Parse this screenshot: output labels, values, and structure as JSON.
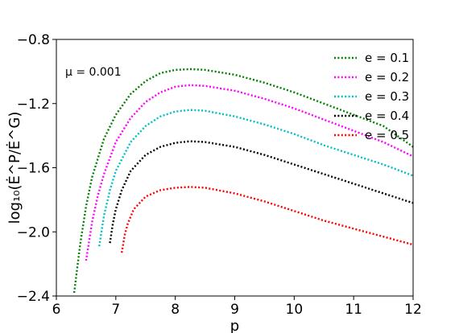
{
  "chart_data": {
    "type": "line",
    "xlabel": "p",
    "ylabel": "log₁₀(Ė^P/Ė^G)",
    "xlim": [
      6,
      12
    ],
    "ylim": [
      -2.4,
      -0.8
    ],
    "xticks": [
      "6",
      "7",
      "8",
      "9",
      "10",
      "11",
      "12"
    ],
    "yticks": [
      "−0.8",
      "−1.2",
      "−1.6",
      "−2.0",
      "−2.4"
    ],
    "annotation": "μ = 0.001",
    "grid": false,
    "legend_position": "top-right",
    "series": [
      {
        "name": "e = 0.1",
        "color": "#008000",
        "x": [
          6.3,
          6.4,
          6.5,
          6.6,
          6.8,
          7.0,
          7.25,
          7.5,
          7.75,
          8.0,
          8.25,
          8.5,
          9.0,
          9.5,
          10.0,
          10.5,
          11.0,
          11.5,
          12.0
        ],
        "y": [
          -2.38,
          -2.08,
          -1.84,
          -1.66,
          -1.42,
          -1.27,
          -1.14,
          -1.06,
          -1.01,
          -0.99,
          -0.985,
          -0.99,
          -1.02,
          -1.07,
          -1.13,
          -1.2,
          -1.27,
          -1.34,
          -1.47
        ]
      },
      {
        "name": "e = 0.2",
        "color": "#ff00ff",
        "x": [
          6.5,
          6.6,
          6.7,
          6.8,
          7.0,
          7.25,
          7.5,
          7.75,
          8.0,
          8.25,
          8.5,
          9.0,
          9.5,
          10.0,
          10.5,
          11.0,
          11.5,
          12.0
        ],
        "y": [
          -2.18,
          -1.94,
          -1.77,
          -1.64,
          -1.44,
          -1.29,
          -1.19,
          -1.13,
          -1.095,
          -1.085,
          -1.09,
          -1.12,
          -1.17,
          -1.23,
          -1.3,
          -1.37,
          -1.44,
          -1.53
        ]
      },
      {
        "name": "e = 0.3",
        "color": "#00bfbf",
        "x": [
          6.72,
          6.8,
          6.9,
          7.0,
          7.25,
          7.5,
          7.75,
          8.0,
          8.25,
          8.5,
          9.0,
          9.5,
          10.0,
          10.5,
          11.0,
          11.5,
          12.0
        ],
        "y": [
          -2.09,
          -1.9,
          -1.74,
          -1.62,
          -1.44,
          -1.34,
          -1.28,
          -1.25,
          -1.24,
          -1.245,
          -1.28,
          -1.33,
          -1.39,
          -1.46,
          -1.52,
          -1.58,
          -1.65
        ]
      },
      {
        "name": "e = 0.4",
        "color": "#000000",
        "x": [
          6.9,
          6.95,
          7.0,
          7.1,
          7.25,
          7.5,
          7.75,
          8.0,
          8.25,
          8.5,
          9.0,
          9.5,
          10.0,
          10.5,
          11.0,
          11.5,
          12.0
        ],
        "y": [
          -2.07,
          -1.95,
          -1.86,
          -1.74,
          -1.62,
          -1.52,
          -1.47,
          -1.445,
          -1.435,
          -1.44,
          -1.47,
          -1.52,
          -1.58,
          -1.64,
          -1.7,
          -1.76,
          -1.82
        ]
      },
      {
        "name": "e = 0.5",
        "color": "#ff0000",
        "x": [
          7.1,
          7.15,
          7.2,
          7.3,
          7.5,
          7.75,
          8.0,
          8.25,
          8.5,
          9.0,
          9.5,
          10.0,
          10.5,
          11.0,
          11.5,
          12.0
        ],
        "y": [
          -2.13,
          -2.02,
          -1.95,
          -1.86,
          -1.78,
          -1.74,
          -1.725,
          -1.72,
          -1.725,
          -1.76,
          -1.81,
          -1.87,
          -1.93,
          -1.98,
          -2.03,
          -2.08
        ]
      }
    ]
  }
}
